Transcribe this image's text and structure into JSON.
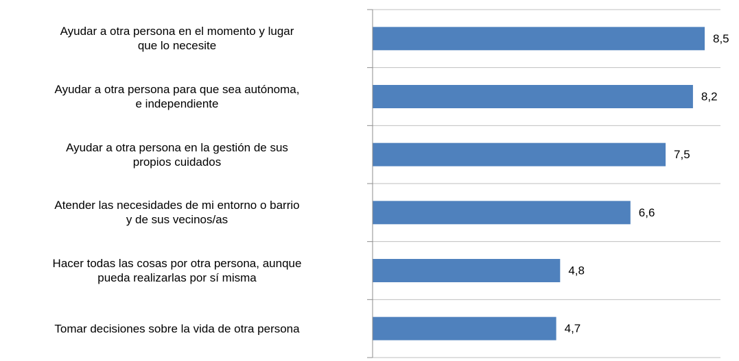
{
  "chart_data": {
    "type": "bar",
    "orientation": "horizontal",
    "categories": [
      "Ayudar a otra persona en el momento y lugar\nque lo necesite",
      "Ayudar a otra persona para que sea autónoma,\ne independiente",
      "Ayudar a otra persona en la gestión de sus\npropios cuidados",
      "Atender las necesidades de mi entorno o barrio\ny de sus vecinos/as",
      "Hacer todas las cosas por otra persona, aunque\npueda realizarlas por sí misma",
      "Tomar decisiones sobre la vida de otra persona"
    ],
    "values": [
      8.5,
      8.2,
      7.5,
      6.6,
      4.8,
      4.7
    ],
    "value_labels": [
      "8,5",
      "8,2",
      "7,5",
      "6,6",
      "4,8",
      "4,7"
    ],
    "color": "#4f81bd"
  }
}
